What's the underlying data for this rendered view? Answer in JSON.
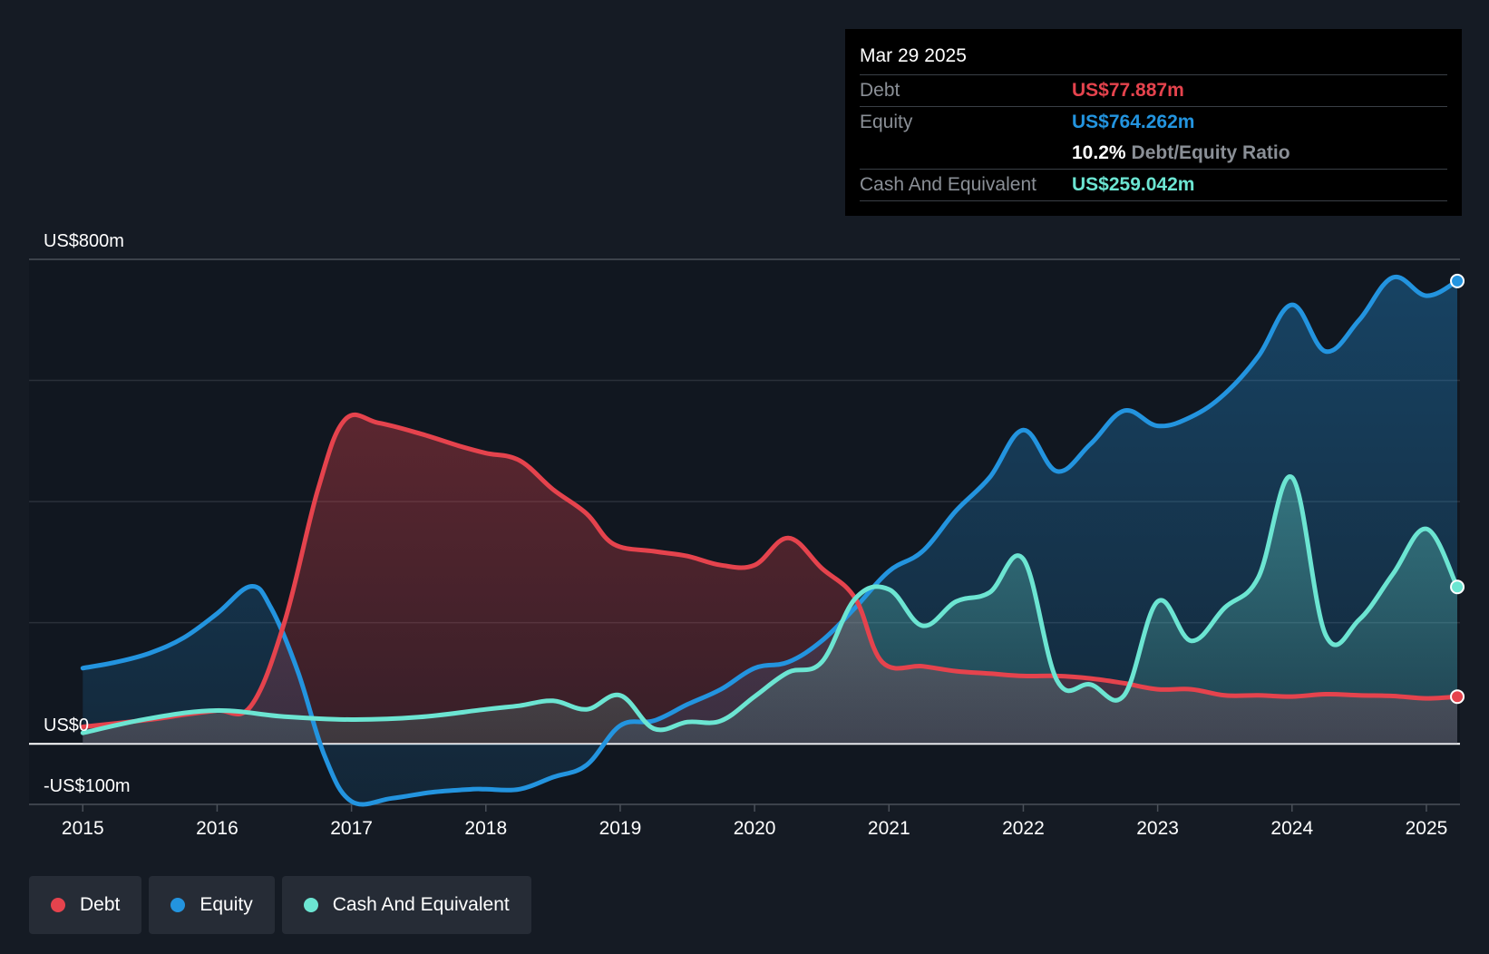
{
  "tooltip": {
    "date": "Mar 29 2025",
    "debt_label": "Debt",
    "debt_value": "US$77.887m",
    "equity_label": "Equity",
    "equity_value": "US$764.262m",
    "ratio_value": "10.2%",
    "ratio_label": "Debt/Equity Ratio",
    "cash_label": "Cash And Equivalent",
    "cash_value": "US$259.042m"
  },
  "legend": {
    "debt": "Debt",
    "equity": "Equity",
    "cash": "Cash And Equivalent"
  },
  "colors": {
    "debt": "#e5434d",
    "equity": "#2394df",
    "cash": "#6ce5d2",
    "background": "#151b24"
  },
  "chart_data": {
    "type": "area",
    "title": "",
    "xlabel": "",
    "ylabel": "",
    "ylim": [
      -100,
      800
    ],
    "x_range": [
      2014.6,
      2025.25
    ],
    "y_tick_labels": [
      {
        "value": 800,
        "label": "US$800m"
      },
      {
        "value": 0,
        "label": "US$0"
      },
      {
        "value": -100,
        "label": "-US$100m"
      }
    ],
    "gridlines": [
      800,
      600,
      400,
      200,
      0,
      -100
    ],
    "x_tick_labels": [
      "2015",
      "2016",
      "2017",
      "2018",
      "2019",
      "2020",
      "2021",
      "2022",
      "2023",
      "2024",
      "2025"
    ],
    "x_tick_values": [
      2015,
      2016,
      2017,
      2018,
      2019,
      2020,
      2021,
      2022,
      2023,
      2024,
      2025
    ],
    "series": [
      {
        "name": "Debt",
        "key": "debt",
        "points": [
          [
            2015.0,
            28
          ],
          [
            2015.5,
            40
          ],
          [
            2015.75,
            48
          ],
          [
            2016.0,
            55
          ],
          [
            2016.25,
            62
          ],
          [
            2016.5,
            200
          ],
          [
            2016.75,
            420
          ],
          [
            2016.95,
            535
          ],
          [
            2017.2,
            530
          ],
          [
            2017.5,
            513
          ],
          [
            2017.8,
            492
          ],
          [
            2018.0,
            480
          ],
          [
            2018.25,
            468
          ],
          [
            2018.5,
            420
          ],
          [
            2018.75,
            380
          ],
          [
            2018.95,
            330
          ],
          [
            2019.25,
            318
          ],
          [
            2019.5,
            310
          ],
          [
            2019.75,
            295
          ],
          [
            2020.0,
            295
          ],
          [
            2020.25,
            340
          ],
          [
            2020.5,
            290
          ],
          [
            2020.75,
            240
          ],
          [
            2020.95,
            135
          ],
          [
            2021.25,
            128
          ],
          [
            2021.5,
            120
          ],
          [
            2021.75,
            116
          ],
          [
            2022.0,
            112
          ],
          [
            2022.25,
            112
          ],
          [
            2022.5,
            108
          ],
          [
            2022.75,
            100
          ],
          [
            2023.0,
            90
          ],
          [
            2023.25,
            90
          ],
          [
            2023.5,
            80
          ],
          [
            2023.75,
            80
          ],
          [
            2024.0,
            78
          ],
          [
            2024.25,
            82
          ],
          [
            2024.5,
            80
          ],
          [
            2024.75,
            79
          ],
          [
            2025.0,
            75
          ],
          [
            2025.23,
            77.887
          ]
        ]
      },
      {
        "name": "Equity",
        "key": "equity",
        "points": [
          [
            2015.0,
            125
          ],
          [
            2015.25,
            135
          ],
          [
            2015.5,
            150
          ],
          [
            2015.75,
            175
          ],
          [
            2016.0,
            215
          ],
          [
            2016.25,
            260
          ],
          [
            2016.4,
            225
          ],
          [
            2016.6,
            120
          ],
          [
            2016.8,
            -20
          ],
          [
            2017.0,
            -95
          ],
          [
            2017.3,
            -90
          ],
          [
            2017.6,
            -80
          ],
          [
            2017.9,
            -75
          ],
          [
            2018.0,
            -75
          ],
          [
            2018.25,
            -75
          ],
          [
            2018.5,
            -55
          ],
          [
            2018.75,
            -35
          ],
          [
            2019.0,
            30
          ],
          [
            2019.25,
            38
          ],
          [
            2019.5,
            65
          ],
          [
            2019.75,
            90
          ],
          [
            2020.0,
            125
          ],
          [
            2020.25,
            135
          ],
          [
            2020.5,
            170
          ],
          [
            2020.75,
            225
          ],
          [
            2021.0,
            285
          ],
          [
            2021.25,
            318
          ],
          [
            2021.5,
            385
          ],
          [
            2021.75,
            440
          ],
          [
            2022.0,
            518
          ],
          [
            2022.25,
            450
          ],
          [
            2022.5,
            495
          ],
          [
            2022.75,
            550
          ],
          [
            2023.0,
            525
          ],
          [
            2023.25,
            540
          ],
          [
            2023.5,
            578
          ],
          [
            2023.75,
            640
          ],
          [
            2024.0,
            725
          ],
          [
            2024.25,
            648
          ],
          [
            2024.5,
            700
          ],
          [
            2024.75,
            770
          ],
          [
            2025.0,
            740
          ],
          [
            2025.23,
            764.262
          ]
        ]
      },
      {
        "name": "Cash And Equivalent",
        "key": "cash",
        "points": [
          [
            2015.0,
            18
          ],
          [
            2015.5,
            42
          ],
          [
            2016.0,
            55
          ],
          [
            2016.5,
            45
          ],
          [
            2017.0,
            40
          ],
          [
            2017.5,
            44
          ],
          [
            2018.0,
            57
          ],
          [
            2018.25,
            63
          ],
          [
            2018.5,
            71
          ],
          [
            2018.75,
            57
          ],
          [
            2019.0,
            80
          ],
          [
            2019.25,
            25
          ],
          [
            2019.5,
            36
          ],
          [
            2019.75,
            38
          ],
          [
            2020.0,
            78
          ],
          [
            2020.25,
            118
          ],
          [
            2020.5,
            135
          ],
          [
            2020.75,
            240
          ],
          [
            2021.0,
            255
          ],
          [
            2021.25,
            195
          ],
          [
            2021.5,
            235
          ],
          [
            2021.75,
            250
          ],
          [
            2022.0,
            305
          ],
          [
            2022.25,
            105
          ],
          [
            2022.5,
            98
          ],
          [
            2022.75,
            80
          ],
          [
            2023.0,
            235
          ],
          [
            2023.25,
            170
          ],
          [
            2023.5,
            225
          ],
          [
            2023.75,
            275
          ],
          [
            2024.0,
            440
          ],
          [
            2024.25,
            180
          ],
          [
            2024.5,
            205
          ],
          [
            2024.75,
            280
          ],
          [
            2025.0,
            355
          ],
          [
            2025.23,
            259.042
          ]
        ]
      }
    ],
    "area_fill_baseline": 0
  }
}
